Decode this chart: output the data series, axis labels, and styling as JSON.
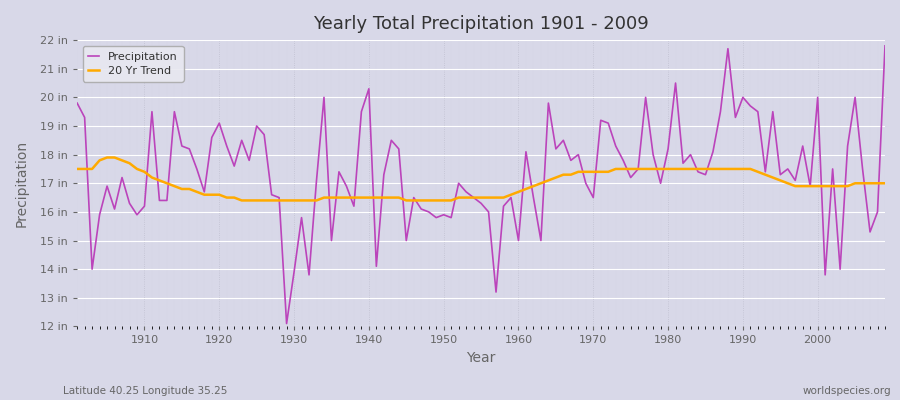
{
  "title": "Yearly Total Precipitation 1901 - 2009",
  "xlabel": "Year",
  "ylabel": "Precipitation",
  "subtitle": "Latitude 40.25 Longitude 35.25",
  "watermark": "worldspecies.org",
  "ylim": [
    12,
    22
  ],
  "yticks": [
    12,
    13,
    14,
    15,
    16,
    17,
    18,
    19,
    20,
    21,
    22
  ],
  "years": [
    1901,
    1902,
    1903,
    1904,
    1905,
    1906,
    1907,
    1908,
    1909,
    1910,
    1911,
    1912,
    1913,
    1914,
    1915,
    1916,
    1917,
    1918,
    1919,
    1920,
    1921,
    1922,
    1923,
    1924,
    1925,
    1926,
    1927,
    1928,
    1929,
    1930,
    1931,
    1932,
    1933,
    1934,
    1935,
    1936,
    1937,
    1938,
    1939,
    1940,
    1941,
    1942,
    1943,
    1944,
    1945,
    1946,
    1947,
    1948,
    1949,
    1950,
    1951,
    1952,
    1953,
    1954,
    1955,
    1956,
    1957,
    1958,
    1959,
    1960,
    1961,
    1962,
    1963,
    1964,
    1965,
    1966,
    1967,
    1968,
    1969,
    1970,
    1971,
    1972,
    1973,
    1974,
    1975,
    1976,
    1977,
    1978,
    1979,
    1980,
    1981,
    1982,
    1983,
    1984,
    1985,
    1986,
    1987,
    1988,
    1989,
    1990,
    1991,
    1992,
    1993,
    1994,
    1995,
    1996,
    1997,
    1998,
    1999,
    2000,
    2001,
    2002,
    2003,
    2004,
    2005,
    2006,
    2007,
    2008,
    2009
  ],
  "precip": [
    19.8,
    19.3,
    14.0,
    15.9,
    16.9,
    16.1,
    17.2,
    16.3,
    15.9,
    16.2,
    19.5,
    16.4,
    16.4,
    19.5,
    18.3,
    18.2,
    17.5,
    16.7,
    18.6,
    19.1,
    18.3,
    17.6,
    18.5,
    17.8,
    19.0,
    18.7,
    16.6,
    16.5,
    12.1,
    13.9,
    15.8,
    13.8,
    17.1,
    20.0,
    15.0,
    17.4,
    16.9,
    16.2,
    19.5,
    20.3,
    14.1,
    17.3,
    18.5,
    18.2,
    15.0,
    16.5,
    16.1,
    16.0,
    15.8,
    15.9,
    15.8,
    17.0,
    16.7,
    16.5,
    16.3,
    16.0,
    13.2,
    16.2,
    16.5,
    15.0,
    18.1,
    16.5,
    15.0,
    19.8,
    18.2,
    18.5,
    17.8,
    18.0,
    17.0,
    16.5,
    19.2,
    19.1,
    18.3,
    17.8,
    17.2,
    17.5,
    20.0,
    18.0,
    17.0,
    18.2,
    20.5,
    17.7,
    18.0,
    17.4,
    17.3,
    18.1,
    19.5,
    21.7,
    19.3,
    20.0,
    19.7,
    19.5,
    17.4,
    19.5,
    17.3,
    17.5,
    17.1,
    18.3,
    16.9,
    20.0,
    13.8,
    17.5,
    14.0,
    18.3,
    20.0,
    17.5,
    15.3,
    16.0,
    21.8
  ],
  "trend": [
    17.5,
    17.5,
    17.5,
    17.8,
    17.9,
    17.9,
    17.8,
    17.7,
    17.5,
    17.4,
    17.2,
    17.1,
    17.0,
    16.9,
    16.8,
    16.8,
    16.7,
    16.6,
    16.6,
    16.6,
    16.5,
    16.5,
    16.4,
    16.4,
    16.4,
    16.4,
    16.4,
    16.4,
    16.4,
    16.4,
    16.4,
    16.4,
    16.4,
    16.5,
    16.5,
    16.5,
    16.5,
    16.5,
    16.5,
    16.5,
    16.5,
    16.5,
    16.5,
    16.5,
    16.4,
    16.4,
    16.4,
    16.4,
    16.4,
    16.4,
    16.4,
    16.5,
    16.5,
    16.5,
    16.5,
    16.5,
    16.5,
    16.5,
    16.6,
    16.7,
    16.8,
    16.9,
    17.0,
    17.1,
    17.2,
    17.3,
    17.3,
    17.4,
    17.4,
    17.4,
    17.4,
    17.4,
    17.5,
    17.5,
    17.5,
    17.5,
    17.5,
    17.5,
    17.5,
    17.5,
    17.5,
    17.5,
    17.5,
    17.5,
    17.5,
    17.5,
    17.5,
    17.5,
    17.5,
    17.5,
    17.5,
    17.4,
    17.3,
    17.2,
    17.1,
    17.0,
    16.9,
    16.9,
    16.9,
    16.9,
    16.9,
    16.9,
    16.9,
    16.9,
    17.0,
    17.0,
    17.0,
    17.0,
    17.0
  ],
  "precip_color": "#bb44bb",
  "trend_color": "#ffaa00",
  "bg_color": "#d8d8e8",
  "plot_bg": "#d8d8e8",
  "grid_color": "#c0c0d0",
  "title_color": "#333333",
  "axis_color": "#666666",
  "legend_bg": "#e8e8f0",
  "xticks": [
    1910,
    1920,
    1930,
    1940,
    1950,
    1960,
    1970,
    1980,
    1990,
    2000
  ]
}
